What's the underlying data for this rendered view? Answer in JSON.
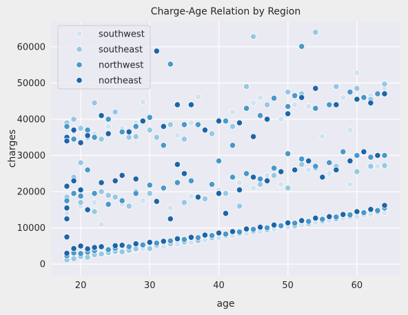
{
  "chart_data": {
    "type": "scatter",
    "title": "Charge-Age Relation by Region",
    "xlabel": "age",
    "ylabel": "charges",
    "xlim": [
      15.7,
      66.3
    ],
    "ylim": [
      -3200,
      67000
    ],
    "xticks": [
      20,
      30,
      40,
      50,
      60
    ],
    "yticks": [
      0,
      10000,
      20000,
      30000,
      40000,
      50000,
      60000
    ],
    "grid": true,
    "legend_position": "top-left",
    "colors": {
      "background": "#eeeeee",
      "plot_background": "#eaeaf2",
      "grid": "#ffffff",
      "marker_edge": "#ffffff"
    },
    "series": [
      {
        "name": "southwest",
        "color": "#d0e3f2",
        "points": [
          [
            18,
            1700
          ],
          [
            19,
            2600
          ],
          [
            20,
            2300
          ],
          [
            21,
            2500
          ],
          [
            22,
            2800
          ],
          [
            23,
            3100
          ],
          [
            24,
            3000
          ],
          [
            25,
            3300
          ],
          [
            26,
            3600
          ],
          [
            27,
            3700
          ],
          [
            28,
            4000
          ],
          [
            29,
            4300
          ],
          [
            30,
            4500
          ],
          [
            32,
            4900
          ],
          [
            34,
            5500
          ],
          [
            36,
            6000
          ],
          [
            38,
            6600
          ],
          [
            40,
            7200
          ],
          [
            42,
            7800
          ],
          [
            44,
            8400
          ],
          [
            46,
            9000
          ],
          [
            48,
            9600
          ],
          [
            50,
            10200
          ],
          [
            52,
            10800
          ],
          [
            54,
            11500
          ],
          [
            56,
            12000
          ],
          [
            58,
            12600
          ],
          [
            60,
            13100
          ],
          [
            62,
            13700
          ],
          [
            64,
            14200
          ],
          [
            18,
            14000
          ],
          [
            20,
            16000
          ],
          [
            22,
            17000
          ],
          [
            23,
            11000
          ],
          [
            26,
            16500
          ],
          [
            29,
            17500
          ],
          [
            33,
            15500
          ],
          [
            36,
            18800
          ],
          [
            40,
            20500
          ],
          [
            43,
            22500
          ],
          [
            45,
            21000
          ],
          [
            47,
            24500
          ],
          [
            49,
            22000
          ],
          [
            53,
            26000
          ],
          [
            56,
            25000
          ],
          [
            59,
            22000
          ],
          [
            63,
            27000
          ],
          [
            18,
            34000
          ],
          [
            19,
            36500
          ],
          [
            21,
            34500
          ],
          [
            22,
            36000
          ],
          [
            24,
            38000
          ],
          [
            26,
            37500
          ],
          [
            28,
            39000
          ],
          [
            29,
            44800
          ],
          [
            32,
            38000
          ],
          [
            34,
            35500
          ],
          [
            36,
            39000
          ],
          [
            37,
            46200
          ],
          [
            40,
            40000
          ],
          [
            42,
            42000
          ],
          [
            45,
            44500
          ],
          [
            46,
            46000
          ],
          [
            49,
            40000
          ],
          [
            51,
            44000
          ],
          [
            53,
            43500
          ],
          [
            55,
            35300
          ],
          [
            58,
            46000
          ],
          [
            59,
            37000
          ],
          [
            60,
            52800
          ],
          [
            62,
            46500
          ],
          [
            64,
            48500
          ]
        ]
      },
      {
        "name": "southeast",
        "color": "#95c8e5",
        "points": [
          [
            18,
            1200
          ],
          [
            18,
            2300
          ],
          [
            19,
            1500
          ],
          [
            20,
            2100
          ],
          [
            21,
            1900
          ],
          [
            22,
            2600
          ],
          [
            23,
            2800
          ],
          [
            24,
            3200
          ],
          [
            25,
            3500
          ],
          [
            26,
            3400
          ],
          [
            27,
            3800
          ],
          [
            28,
            4200
          ],
          [
            30,
            4300
          ],
          [
            31,
            5200
          ],
          [
            33,
            5600
          ],
          [
            35,
            6100
          ],
          [
            37,
            6500
          ],
          [
            39,
            7300
          ],
          [
            41,
            7900
          ],
          [
            43,
            8500
          ],
          [
            45,
            9100
          ],
          [
            47,
            9500
          ],
          [
            49,
            10300
          ],
          [
            51,
            10600
          ],
          [
            53,
            11200
          ],
          [
            55,
            11900
          ],
          [
            57,
            12500
          ],
          [
            59,
            13200
          ],
          [
            61,
            13800
          ],
          [
            63,
            14400
          ],
          [
            64,
            15200
          ],
          [
            18,
            18500
          ],
          [
            19,
            24000
          ],
          [
            20,
            28000
          ],
          [
            20,
            17000
          ],
          [
            22,
            14500
          ],
          [
            23,
            20000
          ],
          [
            24,
            19000
          ],
          [
            25,
            18500
          ],
          [
            27,
            16000
          ],
          [
            28,
            20000
          ],
          [
            30,
            19500
          ],
          [
            32,
            20800
          ],
          [
            35,
            17000
          ],
          [
            38,
            18000
          ],
          [
            41,
            19500
          ],
          [
            43,
            16000
          ],
          [
            46,
            22000
          ],
          [
            48,
            24500
          ],
          [
            50,
            21000
          ],
          [
            52,
            27500
          ],
          [
            54,
            26500
          ],
          [
            57,
            27000
          ],
          [
            60,
            25500
          ],
          [
            62,
            27000
          ],
          [
            64,
            27200
          ],
          [
            18,
            39000
          ],
          [
            19,
            40000
          ],
          [
            20,
            37500
          ],
          [
            21,
            35000
          ],
          [
            22,
            44500
          ],
          [
            23,
            34500
          ],
          [
            25,
            42000
          ],
          [
            27,
            35000
          ],
          [
            28,
            35200
          ],
          [
            30,
            37000
          ],
          [
            31,
            35000
          ],
          [
            33,
            38500
          ],
          [
            35,
            34500
          ],
          [
            37,
            38500
          ],
          [
            39,
            36000
          ],
          [
            42,
            38000
          ],
          [
            44,
            49000
          ],
          [
            45,
            62800
          ],
          [
            47,
            44000
          ],
          [
            50,
            47500
          ],
          [
            52,
            47000
          ],
          [
            54,
            64000
          ],
          [
            57,
            49000
          ],
          [
            60,
            48500
          ],
          [
            62,
            45500
          ],
          [
            64,
            49700
          ]
        ]
      },
      {
        "name": "northwest",
        "color": "#4a98c9",
        "points": [
          [
            18,
            2300
          ],
          [
            19,
            3100
          ],
          [
            20,
            2900
          ],
          [
            21,
            3300
          ],
          [
            22,
            3700
          ],
          [
            24,
            4000
          ],
          [
            25,
            4400
          ],
          [
            27,
            4800
          ],
          [
            29,
            5300
          ],
          [
            31,
            5800
          ],
          [
            33,
            6400
          ],
          [
            35,
            6800
          ],
          [
            37,
            7300
          ],
          [
            39,
            7900
          ],
          [
            41,
            8300
          ],
          [
            43,
            8900
          ],
          [
            45,
            9600
          ],
          [
            47,
            10000
          ],
          [
            49,
            10600
          ],
          [
            51,
            11300
          ],
          [
            53,
            11800
          ],
          [
            55,
            12400
          ],
          [
            57,
            13000
          ],
          [
            59,
            13600
          ],
          [
            61,
            14200
          ],
          [
            63,
            14800
          ],
          [
            64,
            15500
          ],
          [
            18,
            17500
          ],
          [
            19,
            19500
          ],
          [
            20,
            18800
          ],
          [
            21,
            26000
          ],
          [
            22,
            19500
          ],
          [
            24,
            16500
          ],
          [
            26,
            17500
          ],
          [
            28,
            19500
          ],
          [
            30,
            21800
          ],
          [
            32,
            21000
          ],
          [
            34,
            22500
          ],
          [
            36,
            23000
          ],
          [
            39,
            22000
          ],
          [
            40,
            28500
          ],
          [
            42,
            24000
          ],
          [
            44,
            25000
          ],
          [
            46,
            23500
          ],
          [
            48,
            26500
          ],
          [
            50,
            30500
          ],
          [
            52,
            29000
          ],
          [
            54,
            27000
          ],
          [
            56,
            28000
          ],
          [
            58,
            31000
          ],
          [
            60,
            30000
          ],
          [
            62,
            29500
          ],
          [
            64,
            30000
          ],
          [
            18,
            38000
          ],
          [
            19,
            34500
          ],
          [
            21,
            37000
          ],
          [
            22,
            35000
          ],
          [
            24,
            40000
          ],
          [
            26,
            36500
          ],
          [
            28,
            38000
          ],
          [
            30,
            40500
          ],
          [
            32,
            32800
          ],
          [
            33,
            55200
          ],
          [
            35,
            38500
          ],
          [
            37,
            38500
          ],
          [
            41,
            39500
          ],
          [
            42,
            32800
          ],
          [
            44,
            43000
          ],
          [
            46,
            41000
          ],
          [
            48,
            45800
          ],
          [
            50,
            43500
          ],
          [
            51,
            46500
          ],
          [
            52,
            60100
          ],
          [
            54,
            43000
          ],
          [
            56,
            44000
          ],
          [
            59,
            47500
          ],
          [
            61,
            46000
          ],
          [
            63,
            47000
          ]
        ]
      },
      {
        "name": "northeast",
        "color": "#1d65a8",
        "points": [
          [
            18,
            3000
          ],
          [
            18,
            7500
          ],
          [
            19,
            4300
          ],
          [
            20,
            5000
          ],
          [
            21,
            4200
          ],
          [
            22,
            4600
          ],
          [
            23,
            4800
          ],
          [
            25,
            5100
          ],
          [
            26,
            5200
          ],
          [
            28,
            5600
          ],
          [
            30,
            6000
          ],
          [
            32,
            6300
          ],
          [
            34,
            7000
          ],
          [
            36,
            7400
          ],
          [
            38,
            8000
          ],
          [
            40,
            8600
          ],
          [
            42,
            9000
          ],
          [
            44,
            9700
          ],
          [
            46,
            10200
          ],
          [
            48,
            10800
          ],
          [
            50,
            11400
          ],
          [
            52,
            12000
          ],
          [
            54,
            12700
          ],
          [
            56,
            13100
          ],
          [
            58,
            13700
          ],
          [
            60,
            14500
          ],
          [
            62,
            15100
          ],
          [
            64,
            16200
          ],
          [
            18,
            21500
          ],
          [
            18,
            15500
          ],
          [
            18,
            12500
          ],
          [
            19,
            23000
          ],
          [
            20,
            20500
          ],
          [
            21,
            15000
          ],
          [
            23,
            22500
          ],
          [
            25,
            23000
          ],
          [
            26,
            24500
          ],
          [
            28,
            23500
          ],
          [
            31,
            17300
          ],
          [
            33,
            12500
          ],
          [
            34,
            27500
          ],
          [
            35,
            25000
          ],
          [
            37,
            18500
          ],
          [
            40,
            19500
          ],
          [
            41,
            14000
          ],
          [
            43,
            20500
          ],
          [
            45,
            24000
          ],
          [
            47,
            23000
          ],
          [
            49,
            25500
          ],
          [
            51,
            26000
          ],
          [
            53,
            28500
          ],
          [
            55,
            24000
          ],
          [
            57,
            26000
          ],
          [
            59,
            28500
          ],
          [
            61,
            31000
          ],
          [
            63,
            30000
          ],
          [
            18,
            35000
          ],
          [
            18,
            34000
          ],
          [
            19,
            37000
          ],
          [
            20,
            33500
          ],
          [
            21,
            35500
          ],
          [
            23,
            41000
          ],
          [
            24,
            36000
          ],
          [
            27,
            36500
          ],
          [
            29,
            39500
          ],
          [
            31,
            58800
          ],
          [
            32,
            38000
          ],
          [
            34,
            44000
          ],
          [
            36,
            44000
          ],
          [
            38,
            37000
          ],
          [
            40,
            39500
          ],
          [
            43,
            39000
          ],
          [
            45,
            35200
          ],
          [
            47,
            40000
          ],
          [
            50,
            41500
          ],
          [
            52,
            46000
          ],
          [
            54,
            48500
          ],
          [
            57,
            44000
          ],
          [
            60,
            45500
          ],
          [
            62,
            44500
          ],
          [
            64,
            47000
          ]
        ]
      }
    ]
  }
}
